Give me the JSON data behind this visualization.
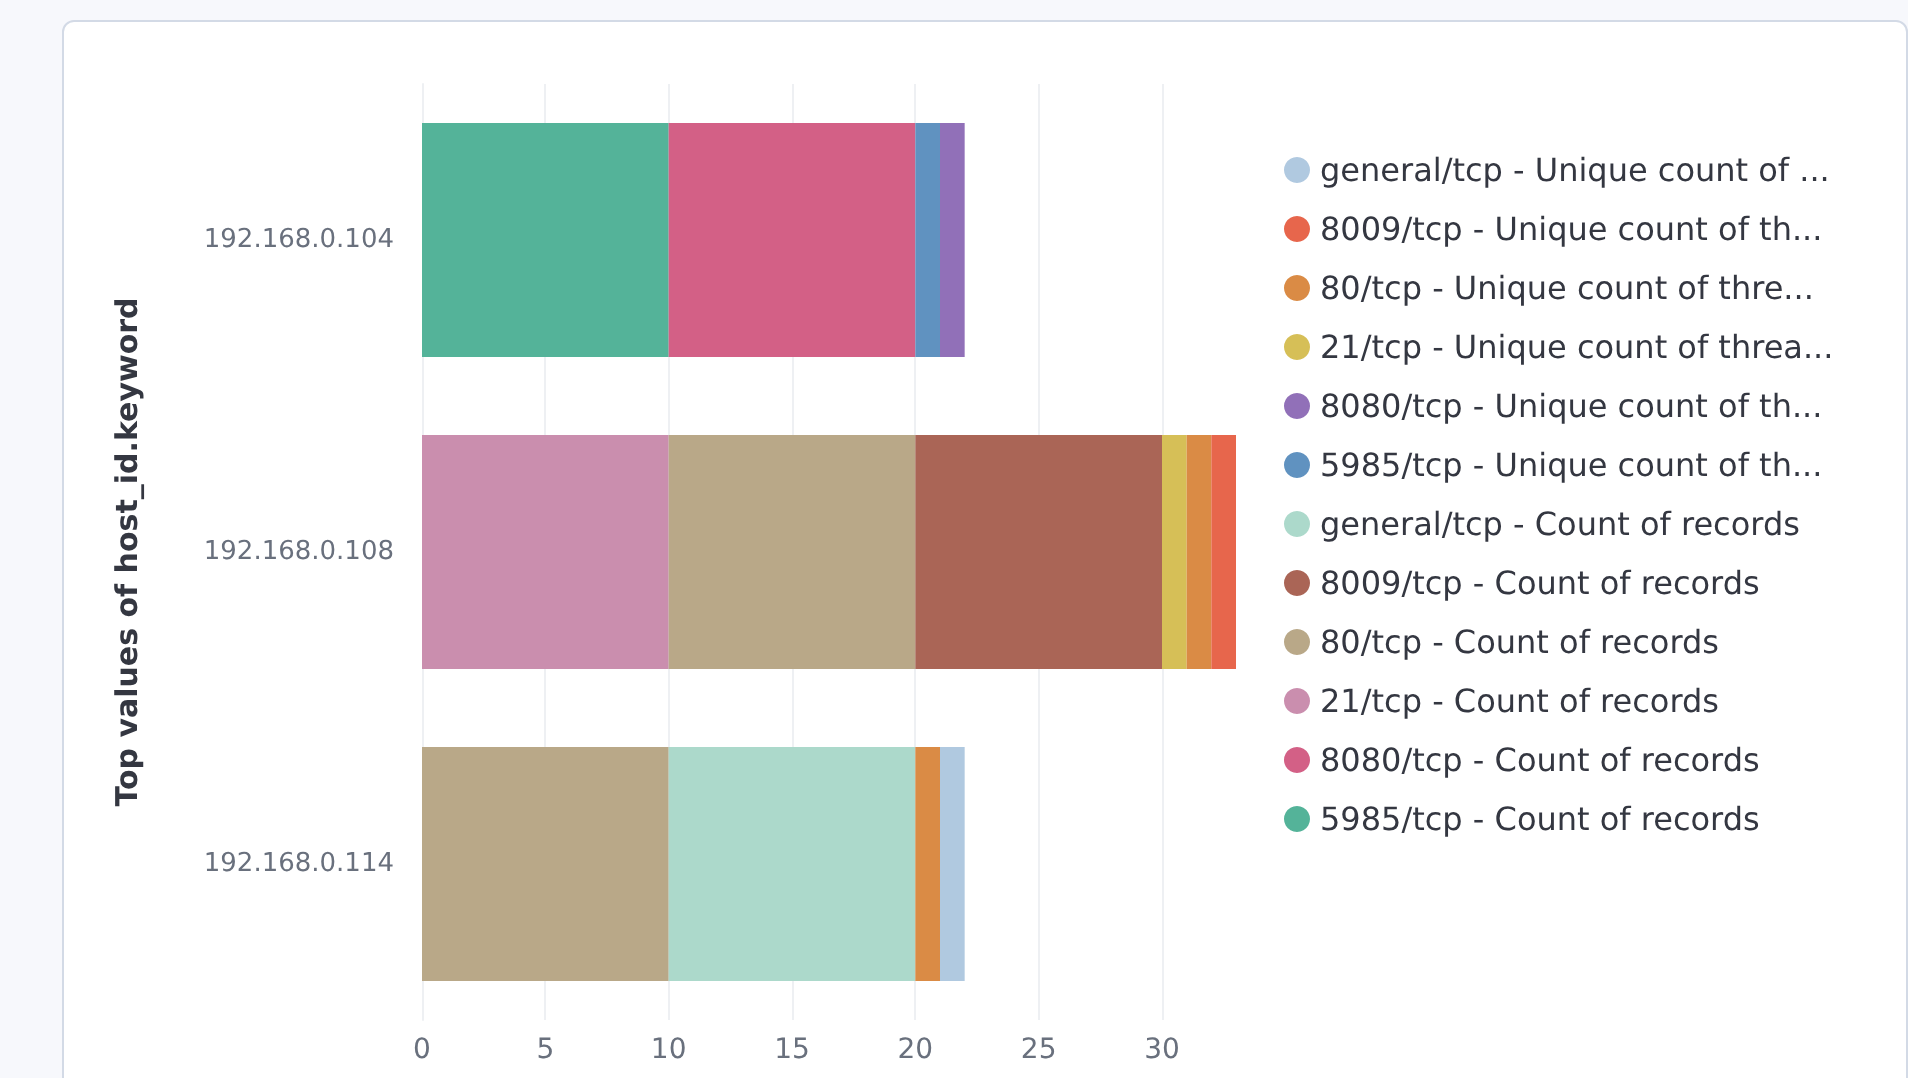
{
  "chart_data": {
    "type": "bar",
    "orientation": "horizontal",
    "stacked": true,
    "ylabel": "Top values of host_id.keyword",
    "categories": [
      "192.168.0.104",
      "192.168.0.108",
      "192.168.0.114"
    ],
    "series": [
      {
        "name": "5985/tcp - Count of records",
        "color": "#54b399",
        "values": [
          10,
          null,
          null
        ]
      },
      {
        "name": "8080/tcp - Count of records",
        "color": "#d36086",
        "values": [
          10,
          null,
          null
        ]
      },
      {
        "name": "21/tcp - Count of records",
        "color": "#ca8eae",
        "values": [
          null,
          10,
          null
        ]
      },
      {
        "name": "80/tcp - Count of records",
        "color": "#b9a888",
        "values": [
          null,
          10,
          10
        ]
      },
      {
        "name": "8009/tcp - Count of records",
        "color": "#aa6556",
        "values": [
          null,
          10,
          null
        ]
      },
      {
        "name": "general/tcp - Count of records",
        "color": "#acd9cb",
        "values": [
          null,
          null,
          10
        ]
      },
      {
        "name": "5985/tcp - Unique count of th...",
        "color": "#6092c0",
        "values": [
          1,
          null,
          null
        ]
      },
      {
        "name": "8080/tcp - Unique count of th...",
        "color": "#9170b8",
        "values": [
          1,
          null,
          null
        ]
      },
      {
        "name": "21/tcp - Unique count of threa...",
        "color": "#d6bf57",
        "values": [
          null,
          1,
          null
        ]
      },
      {
        "name": "80/tcp - Unique count of thre...",
        "color": "#da8b45",
        "values": [
          null,
          1,
          1
        ]
      },
      {
        "name": "8009/tcp - Unique count of th...",
        "color": "#e7664c",
        "values": [
          null,
          1,
          null
        ]
      },
      {
        "name": "general/tcp - Unique count of ...",
        "color": "#b0c9e0",
        "values": [
          null,
          null,
          1
        ]
      }
    ],
    "xlim": [
      0,
      33
    ],
    "xticks": [
      0,
      5,
      10,
      15,
      20,
      25,
      30
    ],
    "grid": "x",
    "legend": "right"
  }
}
